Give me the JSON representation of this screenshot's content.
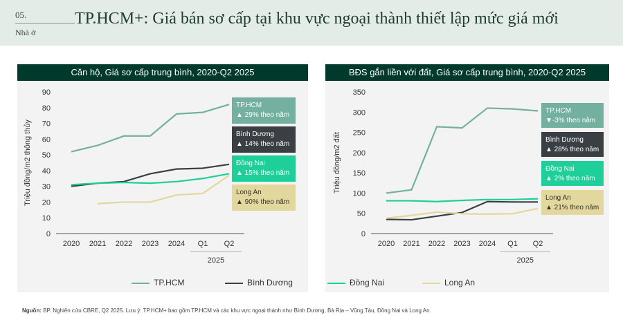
{
  "header": {
    "section_number": "05.",
    "section_name": "Nhà ở",
    "title": "TP.HCM+: Giá bán sơ cấp tại khu vực ngoại thành thiết lập mức giá mới"
  },
  "colors": {
    "tphcm": "#74b0a0",
    "binhduong": "#3a3f44",
    "dongnai": "#1ecf9a",
    "longan": "#e2d79c",
    "panel_title_bg": "#013a2d"
  },
  "legend": [
    {
      "key": "tphcm",
      "label": "TP.HCM"
    },
    {
      "key": "binhduong",
      "label": "Bình Dương"
    },
    {
      "key": "dongnai",
      "label": "Đồng Nai"
    },
    {
      "key": "longan",
      "label": "Long An"
    }
  ],
  "source": {
    "label": "Nguồn:",
    "text": " BP. Nghiên cứu CBRE, Q2 2025. Lưu ý: TP.HCM+ bao gồm TP.HCM và các khu vực ngoại thành như Bình Dương, Bà Rịa – Vũng Tàu, Đồng Nai và Long An."
  },
  "chart_data": [
    {
      "type": "line",
      "title": "Căn hộ, Giá sơ cấp trung bình, 2020-Q2 2025",
      "ylabel": "Triệu đồng/m2 thông thủy",
      "xlabel": "",
      "categories": [
        "2020",
        "2021",
        "2022",
        "2023",
        "2024",
        "Q1",
        "Q2"
      ],
      "category_group": "2025",
      "ylim": [
        0,
        90
      ],
      "yticks": [
        0,
        10,
        20,
        30,
        40,
        50,
        60,
        70,
        80,
        90
      ],
      "grid": false,
      "legend": "bottom",
      "series": [
        {
          "key": "tphcm",
          "name": "TP.HCM",
          "values": [
            52,
            56,
            62,
            62,
            76,
            77,
            82
          ]
        },
        {
          "key": "binhduong",
          "name": "Bình Dương",
          "values": [
            30,
            32,
            33,
            38,
            41,
            41.5,
            44
          ]
        },
        {
          "key": "dongnai",
          "name": "Đồng Nai",
          "values": [
            31,
            32,
            32.5,
            32,
            33,
            35,
            38
          ]
        },
        {
          "key": "longan",
          "name": "Long An",
          "values": [
            null,
            19,
            20,
            20,
            24.5,
            25.5,
            37
          ]
        }
      ],
      "annotations": [
        {
          "key": "tphcm",
          "name": "TP.HCM",
          "change": "▲ 29% theo năm"
        },
        {
          "key": "binhduong",
          "name": "Bình Dương",
          "change": "▲ 14% theo năm"
        },
        {
          "key": "dongnai",
          "name": "Đồng Nai",
          "change": "▲ 15% theo năm"
        },
        {
          "key": "longan",
          "name": "Long An",
          "change": "▲ 90% theo năm"
        }
      ]
    },
    {
      "type": "line",
      "title": "BĐS gắn liền với đất, Giá sơ cấp trung bình, 2020-Q2 2025",
      "ylabel": "Triệu đồng/m2 đất",
      "xlabel": "",
      "categories": [
        "2020",
        "2021",
        "2022",
        "2023",
        "2024",
        "Q1",
        "Q2"
      ],
      "category_group": "2025",
      "ylim": [
        0,
        350
      ],
      "yticks": [
        0,
        50,
        100,
        150,
        200,
        250,
        300,
        350
      ],
      "grid": false,
      "legend": "bottom",
      "series": [
        {
          "key": "tphcm",
          "name": "TP.HCM",
          "values": [
            100,
            108,
            264,
            261,
            310,
            308,
            303
          ]
        },
        {
          "key": "binhduong",
          "name": "Bình Dương",
          "values": [
            35,
            34,
            43,
            52,
            79,
            78,
            78
          ]
        },
        {
          "key": "dongnai",
          "name": "Đồng Nai",
          "values": [
            81,
            81,
            79,
            82,
            84,
            84,
            86
          ]
        },
        {
          "key": "longan",
          "name": "Long An",
          "values": [
            38,
            45,
            53,
            49,
            48,
            49,
            62
          ]
        }
      ],
      "annotations": [
        {
          "key": "tphcm",
          "name": "TP.HCM",
          "change": "▼-3% theo năm"
        },
        {
          "key": "binhduong",
          "name": "Bình Dương",
          "change": "▲ 28% theo năm"
        },
        {
          "key": "dongnai",
          "name": "Đồng Nai",
          "change": "▲ 2% theo năm"
        },
        {
          "key": "longan",
          "name": "Long An",
          "change": "▲ 21% theo năm"
        }
      ]
    }
  ]
}
